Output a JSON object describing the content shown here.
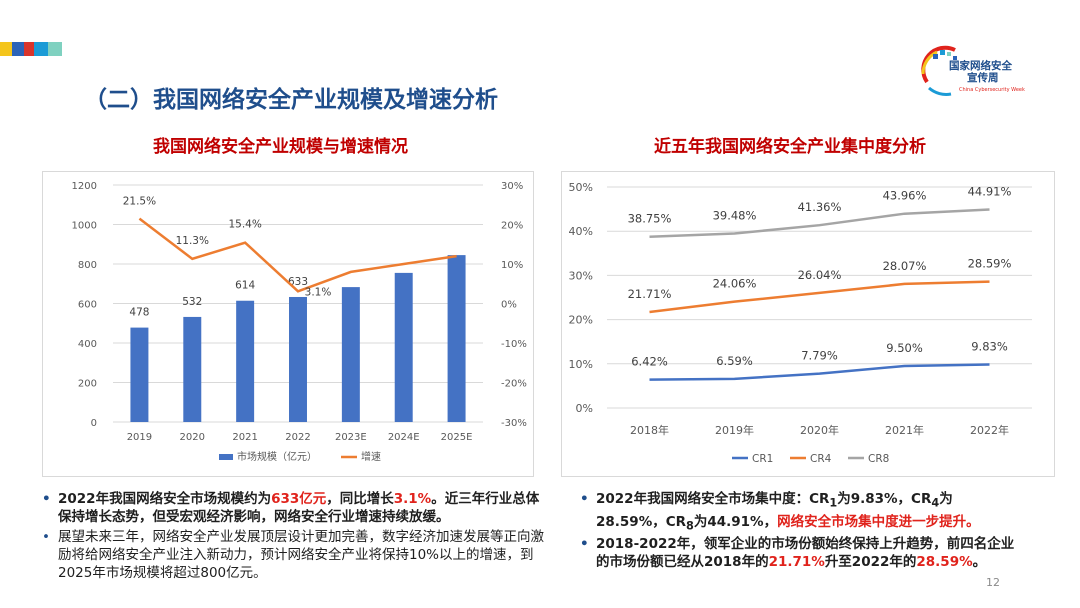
{
  "page": {
    "title": "（二）我国网络安全产业规模及增速分析",
    "page_number": "12",
    "logo": {
      "text_line1": "国家网络安全",
      "text_line2": "宣传周",
      "text_en": "China Cybersecurity Week"
    }
  },
  "charts": {
    "left_title": "我国网络安全产业规模与增速情况",
    "right_title": "近五年我国网络安全产业集中度分析"
  },
  "chart_data": [
    {
      "type": "bar",
      "title": "我国网络安全产业规模与增速情况",
      "categories": [
        "2019",
        "2020",
        "2021",
        "2022",
        "2023E",
        "2024E",
        "2025E"
      ],
      "series": [
        {
          "name": "市场规模（亿元）",
          "type": "bar",
          "axis": "left",
          "values": [
            478,
            532,
            614,
            633,
            683,
            755,
            845
          ],
          "labels": [
            "478",
            "532",
            "614",
            "633",
            "",
            "",
            ""
          ]
        },
        {
          "name": "增速",
          "type": "line",
          "axis": "right",
          "values": [
            21.5,
            11.3,
            15.4,
            3.1,
            8,
            10,
            12
          ],
          "labels": [
            "21.5%",
            "11.3%",
            "15.4%",
            "3.1%",
            "",
            "",
            ""
          ]
        }
      ],
      "left_ticks": [
        "0",
        "200",
        "400",
        "600",
        "800",
        "1000",
        "1200"
      ],
      "right_ticks": [
        "-30%",
        "-20%",
        "-10%",
        "0%",
        "10%",
        "20%",
        "30%"
      ],
      "ylim_left": [
        0,
        1200
      ],
      "ylim_right": [
        -30,
        30
      ],
      "colors": {
        "bar": "#4472c4",
        "line": "#ed7d31",
        "grid": "#d9d9d9",
        "text": "#595959"
      },
      "legend_position": "bottom"
    },
    {
      "type": "line",
      "title": "近五年我国网络安全产业集中度分析",
      "categories": [
        "2018年",
        "2019年",
        "2020年",
        "2021年",
        "2022年"
      ],
      "series": [
        {
          "name": "CR1",
          "values": [
            6.42,
            6.59,
            7.79,
            9.5,
            9.83
          ],
          "labels": [
            "6.42%",
            "6.59%",
            "7.79%",
            "9.50%",
            "9.83%"
          ],
          "color": "#4472c4"
        },
        {
          "name": "CR4",
          "values": [
            21.71,
            24.06,
            26.04,
            28.07,
            28.59
          ],
          "labels": [
            "21.71%",
            "24.06%",
            "26.04%",
            "28.07%",
            "28.59%"
          ],
          "color": "#ed7d31"
        },
        {
          "name": "CR8",
          "values": [
            38.75,
            39.48,
            41.36,
            43.96,
            44.91
          ],
          "labels": [
            "38.75%",
            "39.48%",
            "41.36%",
            "43.96%",
            "44.91%"
          ],
          "color": "#a5a5a5"
        }
      ],
      "y_ticks": [
        "0%",
        "10%",
        "20%",
        "30%",
        "40%",
        "50%"
      ],
      "ylim": [
        0,
        50
      ],
      "colors": {
        "grid": "#d9d9d9",
        "text": "#595959"
      },
      "legend_position": "bottom"
    }
  ],
  "left_bullets": {
    "b1": {
      "p1": "2022年我国网络安全市场规模约为",
      "r1": "633亿元",
      "p2": "，同比增长",
      "r2": "3.1%",
      "p3": "。近三年行业总体保持增长态势，但受宏观经济影响，网络安全行业增速持续放缓。"
    },
    "b2": {
      "text": "展望未来三年，网络安全产业发展顶层设计更加完善，数字经济加速发展等正向激励将给网络安全产业注入新动力，预计网络安全产业将保持10%以上的增速，到2025年市场规模将超过800亿元。"
    }
  },
  "right_bullets": {
    "b1": {
      "p1": "2022年我国网络安全市场集中度：CR",
      "s1": "1",
      "p2": "为9.83%，CR",
      "s2": "4",
      "p3": "为28.59%，CR",
      "s3": "8",
      "p4": "为44.91%，",
      "r1": "网络安全市场集中度进一步提升。"
    },
    "b2": {
      "p1": "2018-2022年，领军企业的市场份额始终保持上升趋势，前四名企业的市场份额已经从2018年的",
      "r1": "21.71%",
      "p2": "升至2022年的",
      "r2": "28.59%",
      "p3": "。"
    }
  },
  "decor": {
    "dot": "•"
  }
}
